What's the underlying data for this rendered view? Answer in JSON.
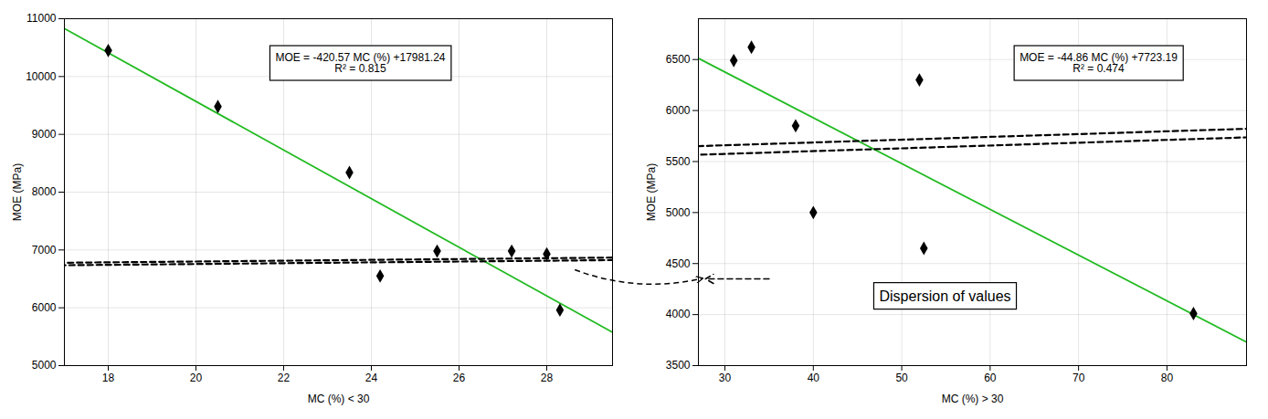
{
  "chart_data": [
    {
      "type": "scatter",
      "x_label": "MC (%) < 30",
      "y_label": "MOE (MPa)",
      "xlim": [
        17.0,
        29.5
      ],
      "ylim": [
        5000,
        11000
      ],
      "xticks": [
        18,
        20,
        22,
        24,
        26,
        28
      ],
      "yticks": [
        5000,
        6000,
        7000,
        8000,
        9000,
        10000,
        11000
      ],
      "grid": true,
      "series": [
        {
          "type": "line",
          "color": "#22bb22",
          "x": [
            17.0,
            29.5
          ],
          "values": [
            10831.55,
            5574.425
          ]
        },
        {
          "type": "scatter",
          "marker": "diamond",
          "color": "black",
          "x": [
            18.0,
            20.5,
            23.5,
            24.2,
            25.5,
            27.2,
            28.0,
            28.3
          ],
          "values": [
            10450,
            9480,
            8340,
            6550,
            6980,
            6980,
            6930,
            5960
          ]
        }
      ],
      "annotations": [
        [
          "MOE = -420.57 MC (%) +17981.24",
          "R² = 0.815"
        ]
      ],
      "ellipse": {
        "cx": 25.8,
        "cy": 6820,
        "rx": 3.0,
        "ry": 820,
        "angle": -8,
        "line_style": "dashed"
      },
      "arrows": [
        {
          "from": [
            28.65,
            6650
          ],
          "to": [
            27.5,
            4350
          ],
          "to_chart": 1,
          "line_style": "dashed"
        }
      ]
    },
    {
      "type": "scatter",
      "x_label": "MC (%) > 30",
      "y_label": "MOE (MPa)",
      "xlim": [
        27,
        89
      ],
      "ylim": [
        3500,
        6900
      ],
      "xticks": [
        30,
        40,
        50,
        60,
        70,
        80
      ],
      "yticks": [
        3500,
        4000,
        4500,
        5000,
        5500,
        6000,
        6500
      ],
      "grid": true,
      "series": [
        {
          "type": "line",
          "color": "#22bb22",
          "x": [
            27,
            89
          ],
          "values": [
            6511.97,
            3730.65
          ]
        },
        {
          "type": "scatter",
          "marker": "diamond",
          "color": "black",
          "x": [
            31.0,
            33.0,
            38.0,
            40.0,
            52.0,
            52.5,
            83.0
          ],
          "values": [
            6490,
            6620,
            5850,
            5000,
            6300,
            4650,
            4010
          ]
        }
      ],
      "annotations": [
        [
          "MOE = -44.86 MC (%) +7723.19",
          "R² = 0.474"
        ],
        [
          "Dispersion of values"
        ]
      ],
      "ellipse": {
        "cx": 42.0,
        "cy": 5650,
        "rx": 14.5,
        "ry": 1200,
        "angle": -20,
        "line_style": "dashed"
      },
      "arrows": [
        {
          "from": [
            35.0,
            4350
          ],
          "to": [
            27.8,
            4350
          ],
          "line_style": "dashed"
        }
      ]
    }
  ]
}
